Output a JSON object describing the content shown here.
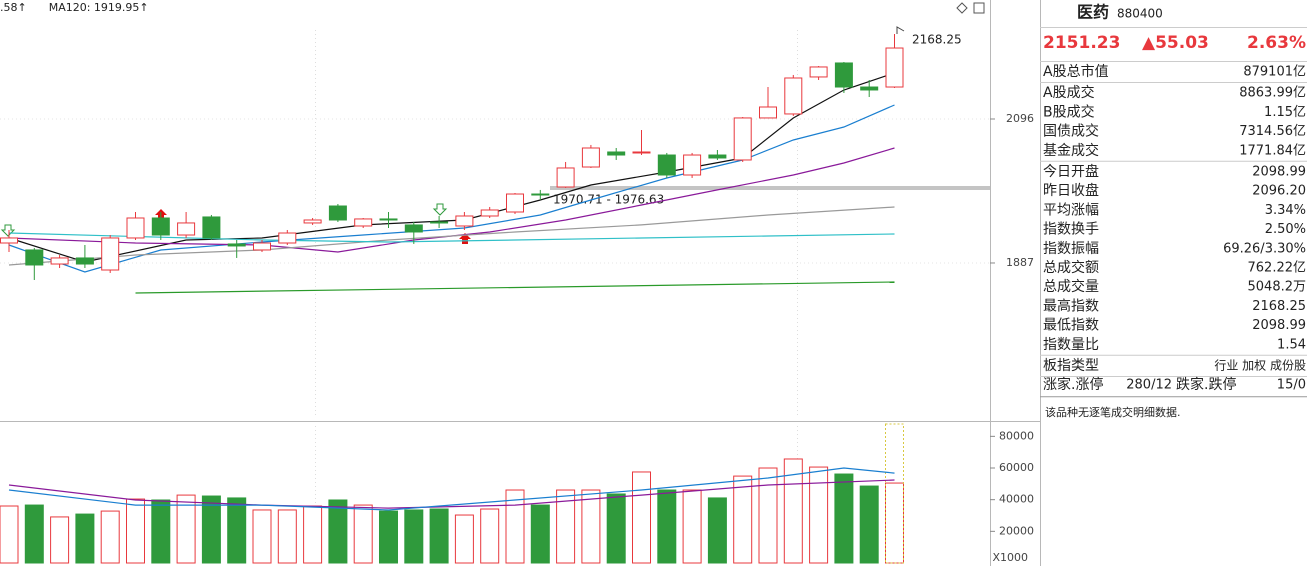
{
  "chart_data": [
    {
      "type": "candlestick",
      "legend": [
        {
          "text": ".58↑",
          "color": "#2a7a2a"
        },
        {
          "text": "MA120: 1919.95↑",
          "color": "#22b0b0"
        }
      ],
      "candles": {
        "open": [
          1916.0,
          1905.9,
          1885.5,
          1894.3,
          1876.8,
          1923.3,
          1952.3,
          1927.6,
          1953.8,
          1914.6,
          1905.9,
          1916.0,
          1945.1,
          1969.7,
          1940.7,
          1950.9,
          1942.2,
          1946.5,
          1940.7,
          1955.2,
          1961.0,
          1987.1,
          1997.3,
          2026.3,
          2048.1,
          2046.7,
          2043.7,
          2014.7,
          2043.7,
          2036.5,
          2097.5,
          2103.3,
          2157.0,
          2177.3,
          2142.4,
          2142.4
        ],
        "high": [
          1934.9,
          1908.8,
          1898.6,
          1913.1,
          1927.6,
          1961.0,
          1961.0,
          1961.0,
          1956.7,
          1920.4,
          1920.4,
          1934.9,
          1952.3,
          1972.6,
          1952.3,
          1961.0,
          1946.5,
          1955.2,
          1961.0,
          1968.3,
          1988.6,
          1993.0,
          2033.6,
          2058.3,
          2053.9,
          2080.0,
          2046.7,
          2046.7,
          2051.0,
          2098.9,
          2142.4,
          2159.9,
          2172.9,
          2178.7,
          2152.6,
          2219.4
        ],
        "low": [
          1903.0,
          1862.3,
          1879.7,
          1879.7,
          1872.5,
          1920.4,
          1920.4,
          1923.3,
          1920.4,
          1894.3,
          1903.0,
          1913.1,
          1942.2,
          1946.5,
          1937.8,
          1937.8,
          1914.6,
          1937.8,
          1934.9,
          1952.3,
          1958.1,
          1978.4,
          1995.9,
          2024.9,
          2036.5,
          2043.7,
          2010.4,
          2010.4,
          2036.5,
          2033.6,
          2097.5,
          2100.4,
          2152.6,
          2133.7,
          2127.9,
          2141.0
        ],
        "close": [
          1923.3,
          1884.1,
          1894.3,
          1885.5,
          1923.3,
          1952.3,
          1927.6,
          1945.1,
          1923.3,
          1911.7,
          1916.0,
          1930.5,
          1949.4,
          1949.4,
          1950.9,
          1949.4,
          1932.0,
          1945.1,
          1955.2,
          1963.9,
          1987.1,
          1985.7,
          2024.9,
          2053.9,
          2043.7,
          2048.1,
          2014.7,
          2043.7,
          2039.4,
          2097.5,
          2113.4,
          2155.5,
          2171.5,
          2142.4,
          2138.1,
          2199.0
        ]
      },
      "up_color": "#e8383d",
      "down_color": "#2f9a3c",
      "ylim": [
        1662.0,
        2268.7
      ],
      "yticks": [
        1887,
        2096
      ],
      "grid": true,
      "lines": [
        {
          "color": "#111111",
          "x": [
            0,
            3,
            7,
            10,
            14,
            18,
            21,
            23,
            26,
            29,
            31,
            33,
            35
          ],
          "values": [
            1923.3,
            1888.4,
            1920.4,
            1923.3,
            1942.2,
            1949.4,
            1978.4,
            2000.2,
            2019.1,
            2039.4,
            2097.5,
            2138.1,
            2162.8
          ]
        },
        {
          "color": "#1a7fd0",
          "x": [
            0,
            3,
            6,
            10,
            14,
            18,
            21,
            23,
            26,
            29,
            31,
            33,
            35
          ],
          "values": [
            1913.1,
            1873.9,
            1905.9,
            1917.5,
            1927.6,
            1937.8,
            1956.7,
            1978.4,
            2010.4,
            2036.5,
            2065.5,
            2084.4,
            2116.3
          ]
        },
        {
          "color": "#8a1a9a",
          "x": [
            0,
            5,
            10,
            13,
            16,
            19,
            22,
            25,
            28,
            31,
            33,
            35
          ],
          "values": [
            1923.3,
            1916.0,
            1913.1,
            1903.0,
            1920.4,
            1932.0,
            1949.4,
            1971.2,
            1993.0,
            2014.7,
            2032.1,
            2053.9
          ]
        },
        {
          "color": "#9a9a9a",
          "x": [
            0,
            5,
            10,
            15,
            20,
            25,
            30,
            35
          ],
          "values": [
            1884.1,
            1898.6,
            1905.9,
            1920.4,
            1932.0,
            1942.2,
            1956.7,
            1968.3
          ]
        },
        {
          "color": "#30c0c8",
          "x": [
            0,
            10,
            15,
            20,
            25,
            30,
            35
          ],
          "values": [
            1930.5,
            1920.4,
            1917.5,
            1920.4,
            1923.3,
            1926.2,
            1929.1
          ]
        },
        {
          "color": "#2a9a2a",
          "x": [
            5,
            35
          ],
          "values": [
            1843.5,
            1859.4
          ]
        }
      ],
      "annotations": [
        "2168.25",
        "1970.71 - 1976.63"
      ]
    },
    {
      "type": "bar",
      "values": [
        36000,
        36600,
        29100,
        30900,
        32800,
        40400,
        39800,
        42900,
        42300,
        41100,
        33500,
        33500,
        36000,
        39800,
        36600,
        32800,
        33500,
        34100,
        30300,
        34100,
        46100,
        36600,
        46100,
        46100,
        43600,
        57500,
        46100,
        46100,
        41100,
        54900,
        60000,
        65700,
        60600,
        56200,
        48600,
        50500
      ],
      "ylim": [
        0,
        87800
      ],
      "yticks": [
        20000,
        40000,
        60000,
        80000
      ],
      "unit_label": "X1000",
      "lines": [
        {
          "color": "#8a1a9a",
          "x": [
            0,
            5,
            10,
            15,
            20,
            25,
            30,
            35
          ],
          "values": [
            49300,
            39800,
            36600,
            34700,
            36600,
            42900,
            49300,
            52400
          ]
        },
        {
          "color": "#1a7fd0",
          "x": [
            0,
            5,
            10,
            15,
            20,
            25,
            30,
            33,
            35
          ],
          "values": [
            46100,
            36600,
            36600,
            33500,
            39800,
            46100,
            53700,
            60000,
            56800
          ]
        }
      ]
    }
  ],
  "side_panel": {
    "name": "医药",
    "code": "880400",
    "price": "2151.23",
    "change": "▲55.03",
    "change_pct": "2.63%",
    "rows": [
      {
        "label": "A股总市值",
        "value": "879101亿",
        "color": "#111111"
      },
      {
        "label": "A股成交",
        "value": "8863.99亿",
        "color": "#111111"
      },
      {
        "label": "B股成交",
        "value": "1.15亿",
        "color": "#111111"
      },
      {
        "label": "国债成交",
        "value": "7314.56亿",
        "color": "#111111"
      },
      {
        "label": "基金成交",
        "value": "1771.84亿",
        "color": "#111111"
      },
      {
        "label": "今日开盘",
        "value": "2098.99",
        "color": "#e8383d"
      },
      {
        "label": "昨日收盘",
        "value": "2096.20",
        "color": "#111111"
      },
      {
        "label": "平均涨幅",
        "value": "3.34%",
        "color": "#e8383d"
      },
      {
        "label": "指数换手",
        "value": "2.50%",
        "color": "#111111"
      },
      {
        "label": "指数振幅",
        "value": "69.26/3.30%",
        "color": "#111111"
      },
      {
        "label": "总成交额",
        "value": "762.22亿",
        "color": "#111111"
      },
      {
        "label": "总成交量",
        "value": "5048.2万",
        "color": "#111111"
      },
      {
        "label": "最高指数",
        "value": "2168.25",
        "color": "#e8383d"
      },
      {
        "label": "最低指数",
        "value": "2098.99",
        "color": "#e8383d"
      },
      {
        "label": "指数量比",
        "value": "1.54",
        "color": "#e8383d"
      },
      {
        "label": "板指类型",
        "value": "行业 加权 成份股",
        "color": "#333333"
      }
    ],
    "breadth": {
      "up_label": "涨家.涨停",
      "up_value": "280/12",
      "down_label": "跌家.跌停",
      "down_value": "15/0"
    },
    "note": "该品种无逐笔成交明细数据."
  }
}
